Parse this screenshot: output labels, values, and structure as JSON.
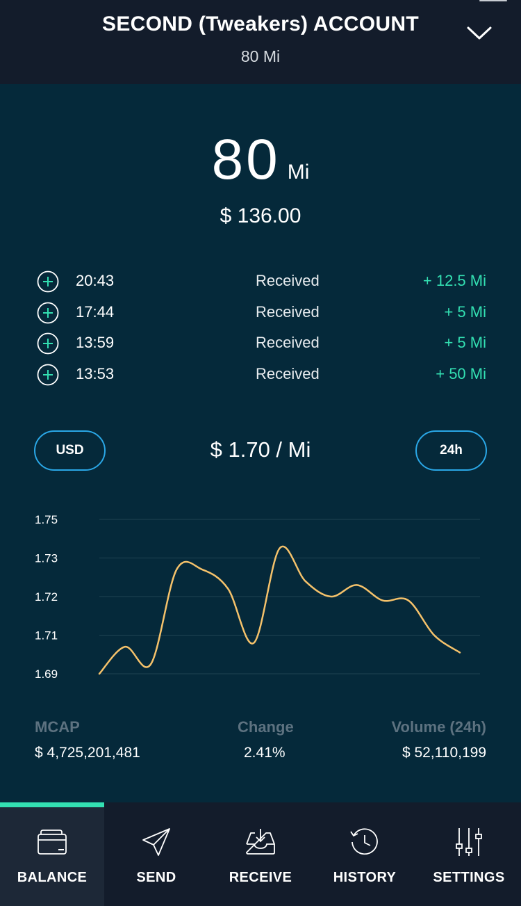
{
  "header": {
    "title": "SECOND (Tweakers) ACCOUNT",
    "subtitle": "80 Mi",
    "dropdown_icon": "chevron-down-icon"
  },
  "balance": {
    "amount": "80",
    "unit": "Mi",
    "fiat": "$ 136.00"
  },
  "transactions": [
    {
      "time": "20:43",
      "type": "Received",
      "amount": "+ 12.5 Mi",
      "icon": "plus-circle-icon"
    },
    {
      "time": "17:44",
      "type": "Received",
      "amount": "+ 5 Mi",
      "icon": "plus-circle-icon"
    },
    {
      "time": "13:59",
      "type": "Received",
      "amount": "+ 5 Mi",
      "icon": "plus-circle-icon"
    },
    {
      "time": "13:53",
      "type": "Received",
      "amount": "+ 50 Mi",
      "icon": "plus-circle-icon"
    }
  ],
  "market": {
    "currency_label": "USD",
    "price": "$ 1.70 / Mi",
    "period_label": "24h"
  },
  "chart_data": {
    "type": "line",
    "title": "",
    "xlabel": "",
    "ylabel": "",
    "y_ticks": [
      "1.75",
      "1.73",
      "1.72",
      "1.71",
      "1.69"
    ],
    "ylim": [
      1.69,
      1.75
    ],
    "grid": true,
    "series": [
      {
        "color": "#f5c26b",
        "values": [
          1.69,
          1.704,
          1.695,
          1.727,
          1.727,
          1.722,
          1.706,
          1.735,
          1.724,
          1.72,
          1.723,
          1.719,
          1.719,
          1.71,
          1.701
        ]
      }
    ]
  },
  "stats": {
    "mcap_label": "MCAP",
    "mcap_value": "$ 4,725,201,481",
    "change_label": "Change",
    "change_value": "2.41%",
    "volume_label": "Volume (24h)",
    "volume_value": "$ 52,110,199"
  },
  "tabs": [
    {
      "label": "BALANCE",
      "icon": "wallet-icon",
      "active": true
    },
    {
      "label": "SEND",
      "icon": "send-icon",
      "active": false
    },
    {
      "label": "RECEIVE",
      "icon": "inbox-icon",
      "active": false
    },
    {
      "label": "HISTORY",
      "icon": "history-icon",
      "active": false
    },
    {
      "label": "SETTINGS",
      "icon": "sliders-icon",
      "active": false
    }
  ],
  "colors": {
    "background": "#05293a",
    "bar": "#131c2b",
    "accent_green": "#33e0b2",
    "accent_blue": "#2aa7e6",
    "chart_line": "#f5c26b"
  }
}
